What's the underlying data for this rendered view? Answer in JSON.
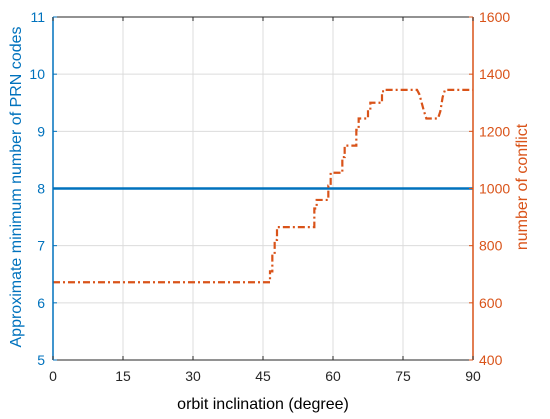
{
  "chart_data": {
    "type": "line",
    "title": "",
    "xlabel": "orbit inclination (degree)",
    "ylabel_left": "Approximate minimum number of PRN codes",
    "ylabel_right": "number of conflict",
    "xlim": [
      0,
      90
    ],
    "ylim_left": [
      5,
      11
    ],
    "ylim_right": [
      400,
      1600
    ],
    "grid": true,
    "x_ticks": [
      "0",
      "15",
      "30",
      "45",
      "60",
      "75",
      "90"
    ],
    "y_left_ticks": [
      "5",
      "6",
      "7",
      "8",
      "9",
      "10",
      "11"
    ],
    "y_right_ticks": [
      "400",
      "600",
      "800",
      "1000",
      "1200",
      "1400",
      "1600"
    ],
    "colors": {
      "left_axis": "#0072BD",
      "right_axis": "#D95319",
      "grid": "#DCDCDC",
      "box": "#262626"
    },
    "series": [
      {
        "axis": "left",
        "style": "solid",
        "color": "#0072BD",
        "x": [
          0,
          90
        ],
        "y": [
          8,
          8
        ]
      },
      {
        "axis": "right",
        "style": "dashdot",
        "color": "#D95319",
        "x": [
          0,
          46.5,
          46.5,
          47,
          47,
          47.5,
          47.5,
          48,
          48,
          56,
          56,
          56.5,
          56.5,
          59,
          59,
          59.5,
          59.5,
          62,
          62,
          62.5,
          62.5,
          65,
          65,
          65.5,
          65.5,
          67.5,
          67.5,
          68,
          68,
          70.5,
          70.5,
          71,
          71,
          78,
          78.5,
          79.5,
          80,
          82.5,
          83,
          83.5,
          84,
          90
        ],
        "y": [
          672,
          672,
          710,
          710,
          770,
          770,
          820,
          820,
          865,
          865,
          930,
          930,
          960,
          960,
          1010,
          1010,
          1055,
          1055,
          1110,
          1110,
          1150,
          1150,
          1205,
          1205,
          1245,
          1245,
          1270,
          1270,
          1300,
          1300,
          1340,
          1340,
          1345,
          1345,
          1330,
          1270,
          1245,
          1245,
          1270,
          1320,
          1345,
          1345
        ]
      }
    ]
  }
}
